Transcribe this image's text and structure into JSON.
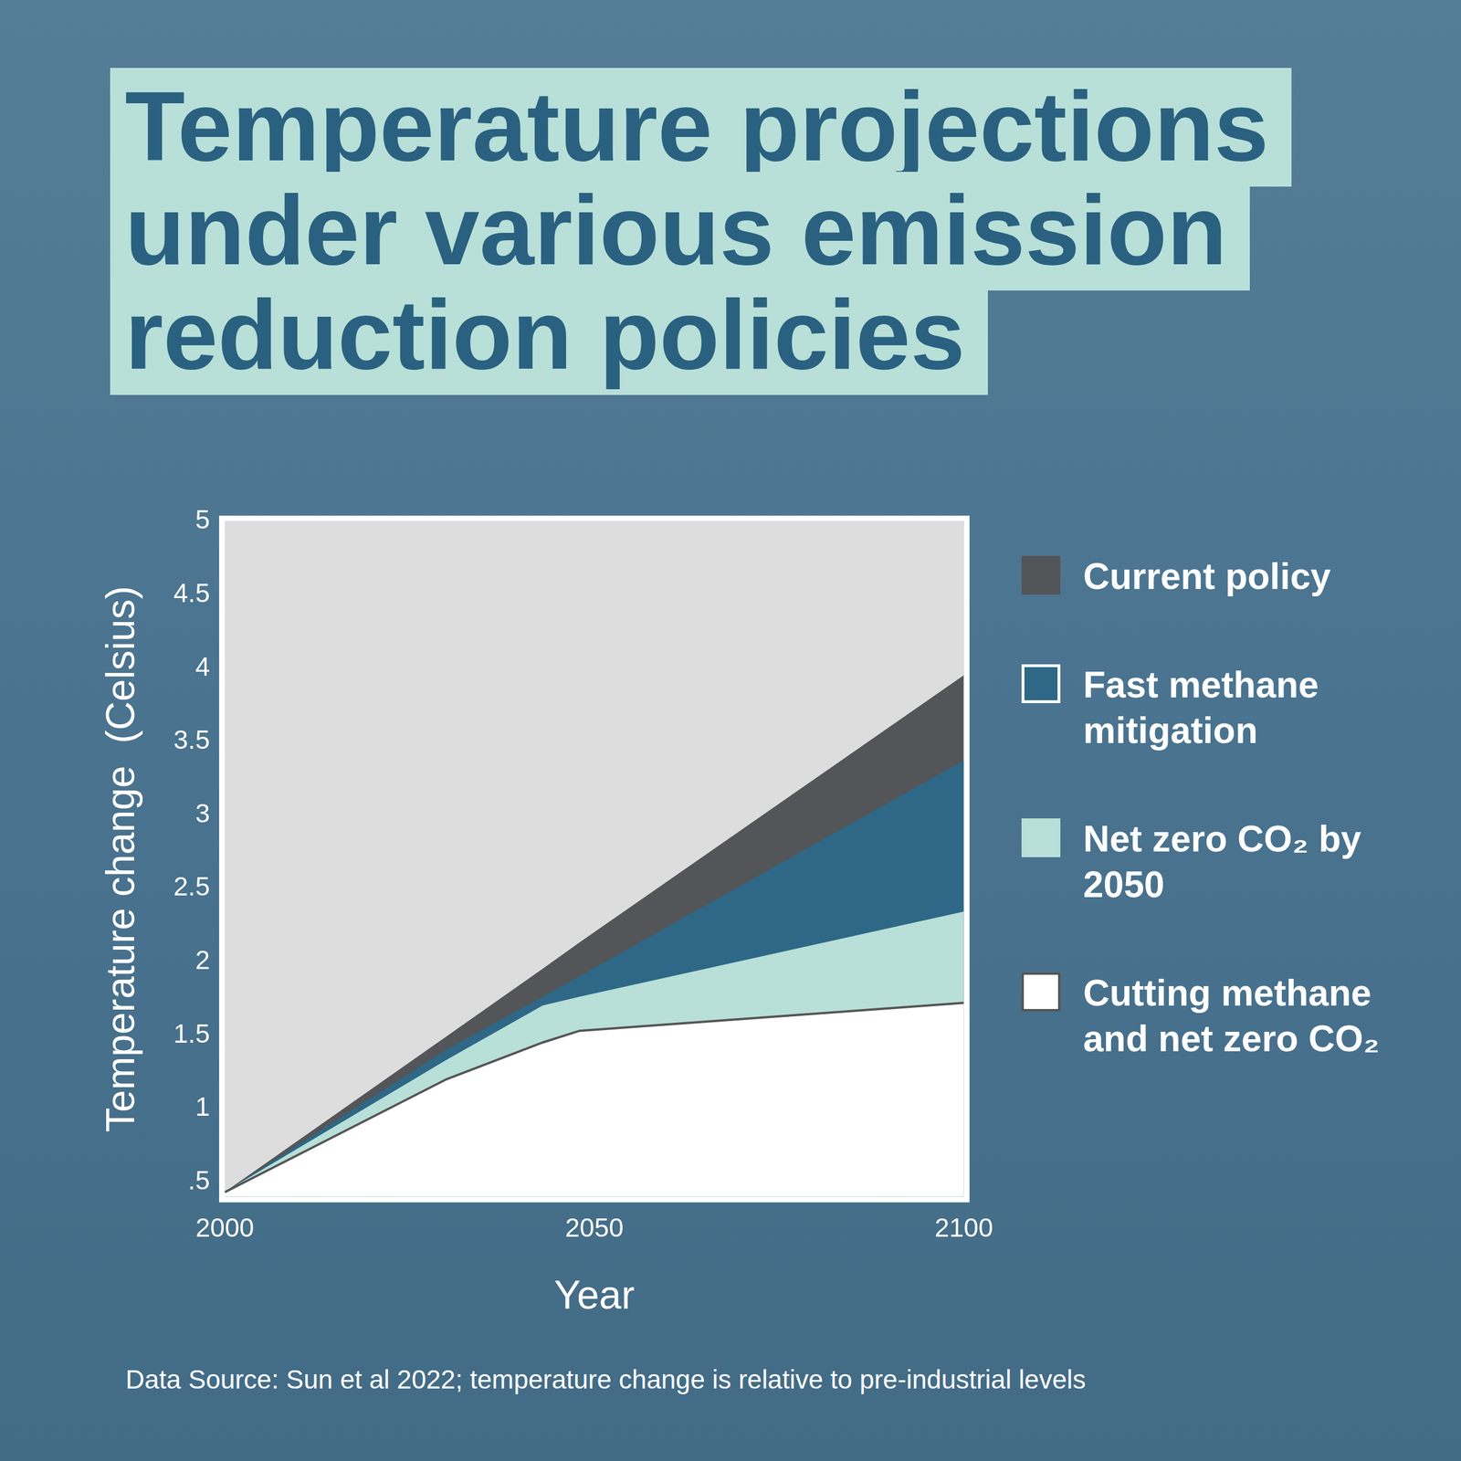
{
  "chart_data": {
    "type": "area",
    "title": "Temperature projections under various emission reduction policies",
    "source": "Data Source: Sun et al 2022; temperature change is relative to pre-industrial levels",
    "x_label": "Year",
    "y_label": "Temperature change  (Celsius)",
    "x": [
      2000,
      2030,
      2043,
      2048,
      2100
    ],
    "series": [
      {
        "name": "Current policy",
        "color": "#545558",
        "values": [
          0.43,
          1.49,
          1.95,
          2.13,
          3.95
        ]
      },
      {
        "name": "Fast methane mitigation",
        "color": "#2e6886",
        "values": [
          0.43,
          1.4,
          1.76,
          1.9,
          3.37
        ]
      },
      {
        "name": "Net zero CO₂ by 2050",
        "color": "#b8e0d8",
        "values": [
          0.43,
          1.33,
          1.7,
          1.76,
          2.34
        ]
      },
      {
        "name": "Cutting methane and net zero CO₂",
        "color": "#ffffff",
        "values": [
          0.43,
          1.2,
          1.45,
          1.53,
          1.72
        ]
      }
    ],
    "xlim": [
      2000,
      2100
    ],
    "xticks": [
      2000,
      2050,
      2100
    ],
    "ylim": [
      0.4,
      5
    ],
    "yticks": [
      {
        "value": 0.5,
        "label": ".5"
      },
      1,
      1.5,
      2,
      2.5,
      3,
      3.5,
      4,
      4.5,
      5
    ],
    "grid": false,
    "legend": "right",
    "stacked": false
  }
}
